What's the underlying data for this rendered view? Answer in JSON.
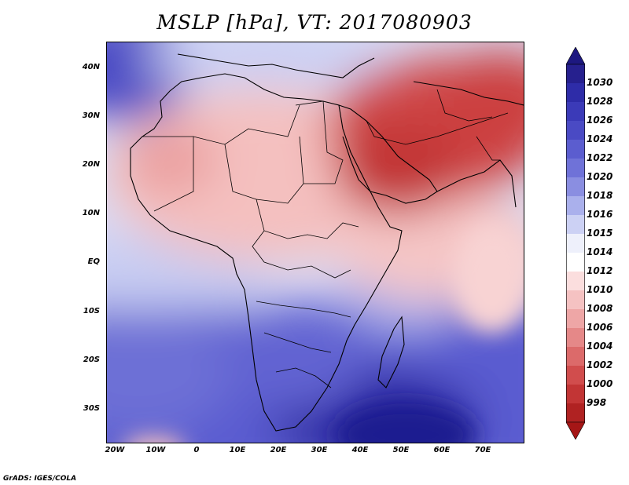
{
  "title": "MSLP [hPa], VT: 2017080903",
  "credit": "GrADS: IGES/COLA",
  "lat_labels": [
    "40N",
    "30N",
    "20N",
    "10N",
    "EQ",
    "10S",
    "20S",
    "30S"
  ],
  "lon_labels": [
    "20W",
    "10W",
    "0",
    "10E",
    "20E",
    "30E",
    "40E",
    "50E",
    "60E",
    "70E"
  ],
  "colorbar": {
    "labels": [
      "1030",
      "1028",
      "1026",
      "1024",
      "1022",
      "1020",
      "1018",
      "1016",
      "1015",
      "1014",
      "1012",
      "1010",
      "1008",
      "1006",
      "1004",
      "1002",
      "1000",
      "998"
    ],
    "colors": [
      "#26208e",
      "#2e2ca8",
      "#3b3ab8",
      "#4a4ac4",
      "#5b5dcf",
      "#6f72d8",
      "#8a8ee1",
      "#aab0ec",
      "#ccd1f4",
      "#eef0fb",
      "#ffffff",
      "#fbdede",
      "#f5c2c2",
      "#eea6a6",
      "#e58888",
      "#dc6a6a",
      "#d14d4d",
      "#c23535",
      "#b02222"
    ],
    "arrow_top_color": "#1d1880",
    "arrow_bottom_color": "#a51616"
  },
  "map": {
    "extent": {
      "lon_min": -22,
      "lon_max": 80,
      "lat_min": -37,
      "lat_max": 45
    }
  }
}
